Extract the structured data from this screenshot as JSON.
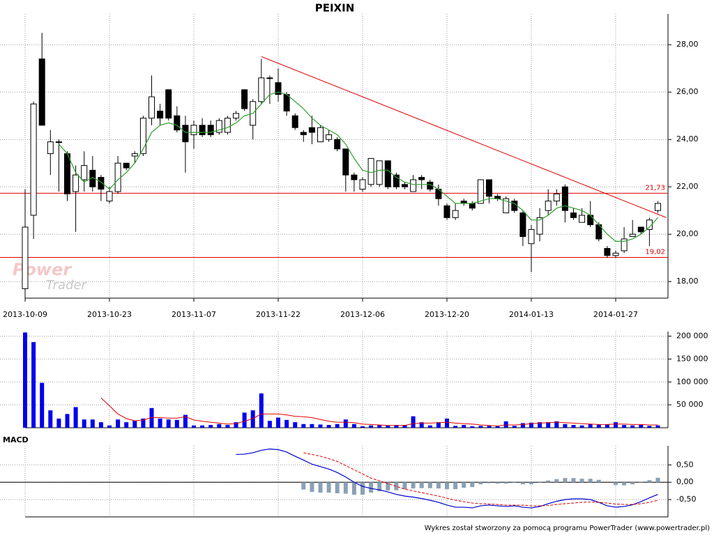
{
  "chart_data": {
    "type": "candlestick",
    "title": "PEIXIN",
    "watermark": [
      "Power",
      "Trader"
    ],
    "footer": "Wykres został stworzony za pomocą programu PowerTrader (www.powertrader.pl)",
    "categories": [
      "2013-10-09",
      null,
      null,
      null,
      null,
      null,
      null,
      null,
      null,
      null,
      "2013-10-23",
      null,
      null,
      null,
      null,
      null,
      null,
      null,
      null,
      null,
      "2013-11-07",
      null,
      null,
      null,
      null,
      null,
      null,
      null,
      null,
      null,
      "2013-11-22",
      null,
      null,
      null,
      null,
      null,
      null,
      null,
      null,
      null,
      "2013-12-06",
      null,
      null,
      null,
      null,
      null,
      null,
      null,
      null,
      null,
      "2013-12-20",
      null,
      null,
      null,
      null,
      null,
      null,
      null,
      null,
      null,
      "2014-01-13",
      null,
      null,
      null,
      null,
      null,
      null,
      null,
      null,
      null,
      "2014-01-27",
      null,
      null,
      null,
      null,
      null
    ],
    "open": [
      17.7,
      20.8,
      27.4,
      23.4,
      23.9,
      23.4,
      21.8,
      22.3,
      22.7,
      22.4,
      21.4,
      21.8,
      23.0,
      23.3,
      23.4,
      24.9,
      25.2,
      26.1,
      25.0,
      24.6,
      24.2,
      24.6,
      24.6,
      24.3,
      24.3,
      24.9,
      26.1,
      24.6,
      25.6,
      26.6,
      26.4,
      25.9,
      25.0,
      24.3,
      24.5,
      23.9,
      24.0,
      24.0,
      23.6,
      22.5,
      21.9,
      22.1,
      22.1,
      23.1,
      22.5,
      22.1,
      21.8,
      22.4,
      22.2,
      21.9,
      21.2,
      20.7,
      21.4,
      21.3,
      21.3,
      22.3,
      21.6,
      20.9,
      21.4,
      20.9,
      19.6,
      20.0,
      21.0,
      21.4,
      22.0,
      20.9,
      20.5,
      20.8,
      20.4,
      19.4,
      19.1,
      19.3,
      19.9,
      20.3,
      20.2,
      21.0
    ],
    "high": [
      21.9,
      25.6,
      28.5,
      24.4,
      24.0,
      23.5,
      22.9,
      23.5,
      23.3,
      22.5,
      22.0,
      23.3,
      23.0,
      23.5,
      25.0,
      26.7,
      25.5,
      26.1,
      25.4,
      25.0,
      24.8,
      24.9,
      24.8,
      24.9,
      25.0,
      25.2,
      26.1,
      25.7,
      27.4,
      26.7,
      27.0,
      26.0,
      25.1,
      24.4,
      25.0,
      24.6,
      24.4,
      24.1,
      23.6,
      22.6,
      22.4,
      23.2,
      23.1,
      23.1,
      22.6,
      22.2,
      22.5,
      22.5,
      22.3,
      22.1,
      21.3,
      21.3,
      21.5,
      21.4,
      22.3,
      22.3,
      21.7,
      21.6,
      21.5,
      21.0,
      20.4,
      21.1,
      21.9,
      21.9,
      22.1,
      21.1,
      21.1,
      21.4,
      20.5,
      19.5,
      19.3,
      20.3,
      20.6,
      20.3,
      20.7,
      21.4
    ],
    "low": [
      17.3,
      19.8,
      24.6,
      22.5,
      21.8,
      21.4,
      20.1,
      21.8,
      21.8,
      21.4,
      21.3,
      21.7,
      22.7,
      23.0,
      23.3,
      24.6,
      24.6,
      24.8,
      24.3,
      22.6,
      23.6,
      24.1,
      24.1,
      24.2,
      24.2,
      24.8,
      25.2,
      24.0,
      25.5,
      25.5,
      25.6,
      25.0,
      24.4,
      23.9,
      23.8,
      23.9,
      23.9,
      23.5,
      21.8,
      21.8,
      21.8,
      22.0,
      22.0,
      21.9,
      21.9,
      21.9,
      21.8,
      21.9,
      21.8,
      21.2,
      20.6,
      20.6,
      21.2,
      21.0,
      21.3,
      21.3,
      21.4,
      20.9,
      20.9,
      19.5,
      18.4,
      19.7,
      20.8,
      21.2,
      20.5,
      20.6,
      20.5,
      20.3,
      19.7,
      19.0,
      19.0,
      19.2,
      19.9,
      20.0,
      19.5,
      20.9
    ],
    "close": [
      20.3,
      25.5,
      24.6,
      23.9,
      23.9,
      21.7,
      22.5,
      22.9,
      22.0,
      21.9,
      21.8,
      23.0,
      22.8,
      23.4,
      24.9,
      25.8,
      24.9,
      24.9,
      24.4,
      23.9,
      24.6,
      24.2,
      24.2,
      24.8,
      24.9,
      25.1,
      25.3,
      25.6,
      26.6,
      26.6,
      25.9,
      25.2,
      24.5,
      24.2,
      24.3,
      24.5,
      24.2,
      23.6,
      22.5,
      22.3,
      22.3,
      23.2,
      23.1,
      22.0,
      22.0,
      22.0,
      22.3,
      22.3,
      21.9,
      21.5,
      20.7,
      21.0,
      21.3,
      21.1,
      22.3,
      21.6,
      21.5,
      21.5,
      21.0,
      19.9,
      20.2,
      20.7,
      21.4,
      21.7,
      21.0,
      20.7,
      20.8,
      20.4,
      19.8,
      19.1,
      19.2,
      19.8,
      20.0,
      20.1,
      20.6,
      21.3
    ],
    "ma": [
      null,
      null,
      null,
      null,
      23.8,
      23.4,
      22.6,
      22.2,
      22.4,
      22.2,
      21.9,
      22.3,
      22.6,
      23.0,
      23.6,
      24.3,
      24.6,
      24.7,
      24.6,
      24.3,
      24.3,
      24.3,
      24.3,
      24.4,
      24.5,
      24.7,
      25.0,
      25.1,
      25.5,
      25.9,
      26.0,
      25.9,
      25.6,
      25.3,
      24.9,
      24.6,
      24.4,
      24.2,
      23.8,
      23.2,
      22.7,
      22.6,
      22.7,
      22.7,
      22.4,
      22.2,
      22.1,
      22.1,
      22.1,
      21.9,
      21.6,
      21.3,
      21.3,
      21.3,
      21.4,
      21.5,
      21.5,
      21.4,
      21.3,
      21.0,
      20.6,
      20.6,
      20.8,
      21.1,
      21.2,
      21.1,
      21.0,
      20.8,
      20.4,
      20.0,
      19.7,
      19.7,
      19.8,
      20.0,
      20.3,
      20.7
    ],
    "ma_color": "#2ca02c",
    "ylim": [
      17.3,
      29.3
    ],
    "yticks": [
      {
        "value": 18,
        "label": "18,00"
      },
      {
        "value": 20,
        "label": "20,00"
      },
      {
        "value": 22,
        "label": "22,00"
      },
      {
        "value": 24,
        "label": "24,00"
      },
      {
        "value": 26,
        "label": "26,00"
      },
      {
        "value": 28,
        "label": "28,00"
      }
    ],
    "levels": [
      {
        "value": 21.73,
        "label": "21,73"
      },
      {
        "value": 19.02,
        "label": "19,02"
      }
    ],
    "level_color": "#e00000",
    "trendline": {
      "x": [
        28,
        76
      ],
      "y": [
        27.5,
        20.7
      ],
      "color": "#e00000"
    },
    "grid": true,
    "volume": {
      "color": "#0000ee",
      "values": [
        208000,
        187000,
        98000,
        38000,
        20000,
        30000,
        45000,
        18000,
        18000,
        12000,
        5000,
        18000,
        12000,
        15000,
        20000,
        43000,
        20000,
        18000,
        17000,
        28000,
        5000,
        5000,
        6000,
        8000,
        6000,
        12000,
        33000,
        38000,
        75000,
        15000,
        22000,
        17000,
        12000,
        8000,
        8000,
        7000,
        6000,
        8000,
        18000,
        8000,
        3000,
        5000,
        6000,
        5000,
        6000,
        6000,
        25000,
        12000,
        5000,
        12000,
        20000,
        4000,
        6000,
        3000,
        4000,
        4000,
        3000,
        14000,
        4000,
        10000,
        11000,
        12000,
        12000,
        14000,
        8000,
        6000,
        5000,
        8000,
        7000,
        7000,
        12000,
        6000,
        5000,
        6000,
        4000,
        5000
      ],
      "ma": [
        null,
        null,
        null,
        null,
        null,
        null,
        null,
        null,
        null,
        65000,
        48000,
        30000,
        20000,
        15000,
        17000,
        22000,
        22000,
        21000,
        21000,
        24000,
        17000,
        14000,
        12000,
        10000,
        8000,
        9000,
        14000,
        20000,
        30000,
        30000,
        30000,
        28000,
        25000,
        24000,
        22000,
        18000,
        14000,
        12000,
        12000,
        11000,
        8000,
        7000,
        6000,
        5000,
        5000,
        5000,
        9000,
        10000,
        10000,
        11000,
        12000,
        10000,
        9000,
        8000,
        6000,
        5000,
        4000,
        6000,
        6000,
        7000,
        9000,
        10000,
        11000,
        12000,
        11000,
        10000,
        9000,
        8000,
        7000,
        7000,
        8000,
        8000,
        7000,
        7000,
        6000,
        6000
      ],
      "ma_color": "#e00000",
      "ylim": [
        0,
        210000
      ],
      "yticks": [
        {
          "value": 50000,
          "label": "50 000"
        },
        {
          "value": 100000,
          "label": "100 000"
        },
        {
          "value": 150000,
          "label": "150 000"
        },
        {
          "value": 200000,
          "label": "200 000"
        }
      ]
    },
    "macd": {
      "label": "MACD",
      "macd": [
        null,
        null,
        null,
        null,
        null,
        null,
        null,
        null,
        null,
        null,
        null,
        null,
        null,
        null,
        null,
        null,
        null,
        null,
        null,
        null,
        null,
        null,
        null,
        null,
        null,
        0.8,
        0.81,
        0.85,
        0.92,
        0.96,
        0.94,
        0.87,
        0.75,
        0.64,
        0.52,
        0.45,
        0.38,
        0.28,
        0.15,
        0.0,
        -0.12,
        -0.18,
        -0.22,
        -0.28,
        -0.35,
        -0.4,
        -0.43,
        -0.47,
        -0.52,
        -0.58,
        -0.66,
        -0.72,
        -0.72,
        -0.74,
        -0.68,
        -0.66,
        -0.68,
        -0.7,
        -0.68,
        -0.72,
        -0.74,
        -0.7,
        -0.62,
        -0.55,
        -0.5,
        -0.48,
        -0.48,
        -0.5,
        -0.58,
        -0.68,
        -0.72,
        -0.7,
        -0.65,
        -0.56,
        -0.45,
        -0.35
      ],
      "signal": [
        null,
        null,
        null,
        null,
        null,
        null,
        null,
        null,
        null,
        null,
        null,
        null,
        null,
        null,
        null,
        null,
        null,
        null,
        null,
        null,
        null,
        null,
        null,
        null,
        null,
        null,
        null,
        null,
        null,
        null,
        null,
        null,
        null,
        0.85,
        0.8,
        0.75,
        0.68,
        0.6,
        0.48,
        0.36,
        0.24,
        0.12,
        0.04,
        -0.04,
        -0.12,
        -0.2,
        -0.25,
        -0.3,
        -0.35,
        -0.4,
        -0.46,
        -0.52,
        -0.56,
        -0.6,
        -0.62,
        -0.63,
        -0.64,
        -0.66,
        -0.66,
        -0.66,
        -0.68,
        -0.68,
        -0.67,
        -0.64,
        -0.62,
        -0.6,
        -0.58,
        -0.57,
        -0.58,
        -0.6,
        -0.63,
        -0.64,
        -0.64,
        -0.62,
        -0.58,
        -0.52
      ],
      "hist": [
        null,
        null,
        null,
        null,
        null,
        null,
        null,
        null,
        null,
        null,
        null,
        null,
        null,
        null,
        null,
        null,
        null,
        null,
        null,
        null,
        null,
        null,
        null,
        null,
        null,
        null,
        null,
        null,
        null,
        null,
        null,
        null,
        null,
        -0.21,
        -0.28,
        -0.3,
        -0.3,
        -0.32,
        -0.33,
        -0.36,
        -0.36,
        -0.3,
        -0.26,
        -0.24,
        -0.23,
        -0.2,
        -0.18,
        -0.17,
        -0.17,
        -0.18,
        -0.2,
        -0.2,
        -0.16,
        -0.14,
        -0.06,
        -0.03,
        -0.04,
        -0.04,
        -0.02,
        -0.06,
        -0.06,
        -0.02,
        0.05,
        0.09,
        0.12,
        0.12,
        0.1,
        0.1,
        0.07,
        0.0,
        -0.08,
        -0.09,
        -0.06,
        -0.01,
        0.06,
        0.13
      ],
      "macd_color": "#0000cc",
      "signal_color": "#e00000",
      "hist_color": "#8aa0b4",
      "ylim": [
        -1.0,
        1.05
      ],
      "yticks": [
        {
          "value": 0.5,
          "label": "0,50"
        },
        {
          "value": 0,
          "label": "0,00"
        },
        {
          "value": -0.5,
          "label": "-0,50"
        }
      ]
    }
  }
}
